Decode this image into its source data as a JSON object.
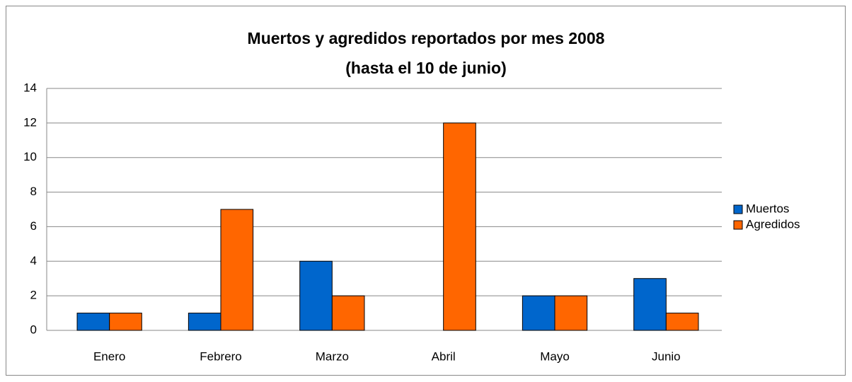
{
  "chart_data": {
    "type": "bar",
    "title": "Muertos y agredidos reportados por mes 2008",
    "subtitle": "(hasta el 10 de junio)",
    "categories": [
      "Enero",
      "Febrero",
      "Marzo",
      "Abril",
      "Mayo",
      "Junio"
    ],
    "series": [
      {
        "name": "Muertos",
        "color": "#0066cc",
        "values": [
          1,
          1,
          4,
          0,
          2,
          3
        ]
      },
      {
        "name": "Agredidos",
        "color": "#ff6600",
        "values": [
          1,
          7,
          2,
          12,
          2,
          1
        ]
      }
    ],
    "ylim": [
      0,
      14
    ],
    "yticks": [
      0,
      2,
      4,
      6,
      8,
      10,
      12,
      14
    ],
    "grid": true,
    "legend": "right"
  }
}
